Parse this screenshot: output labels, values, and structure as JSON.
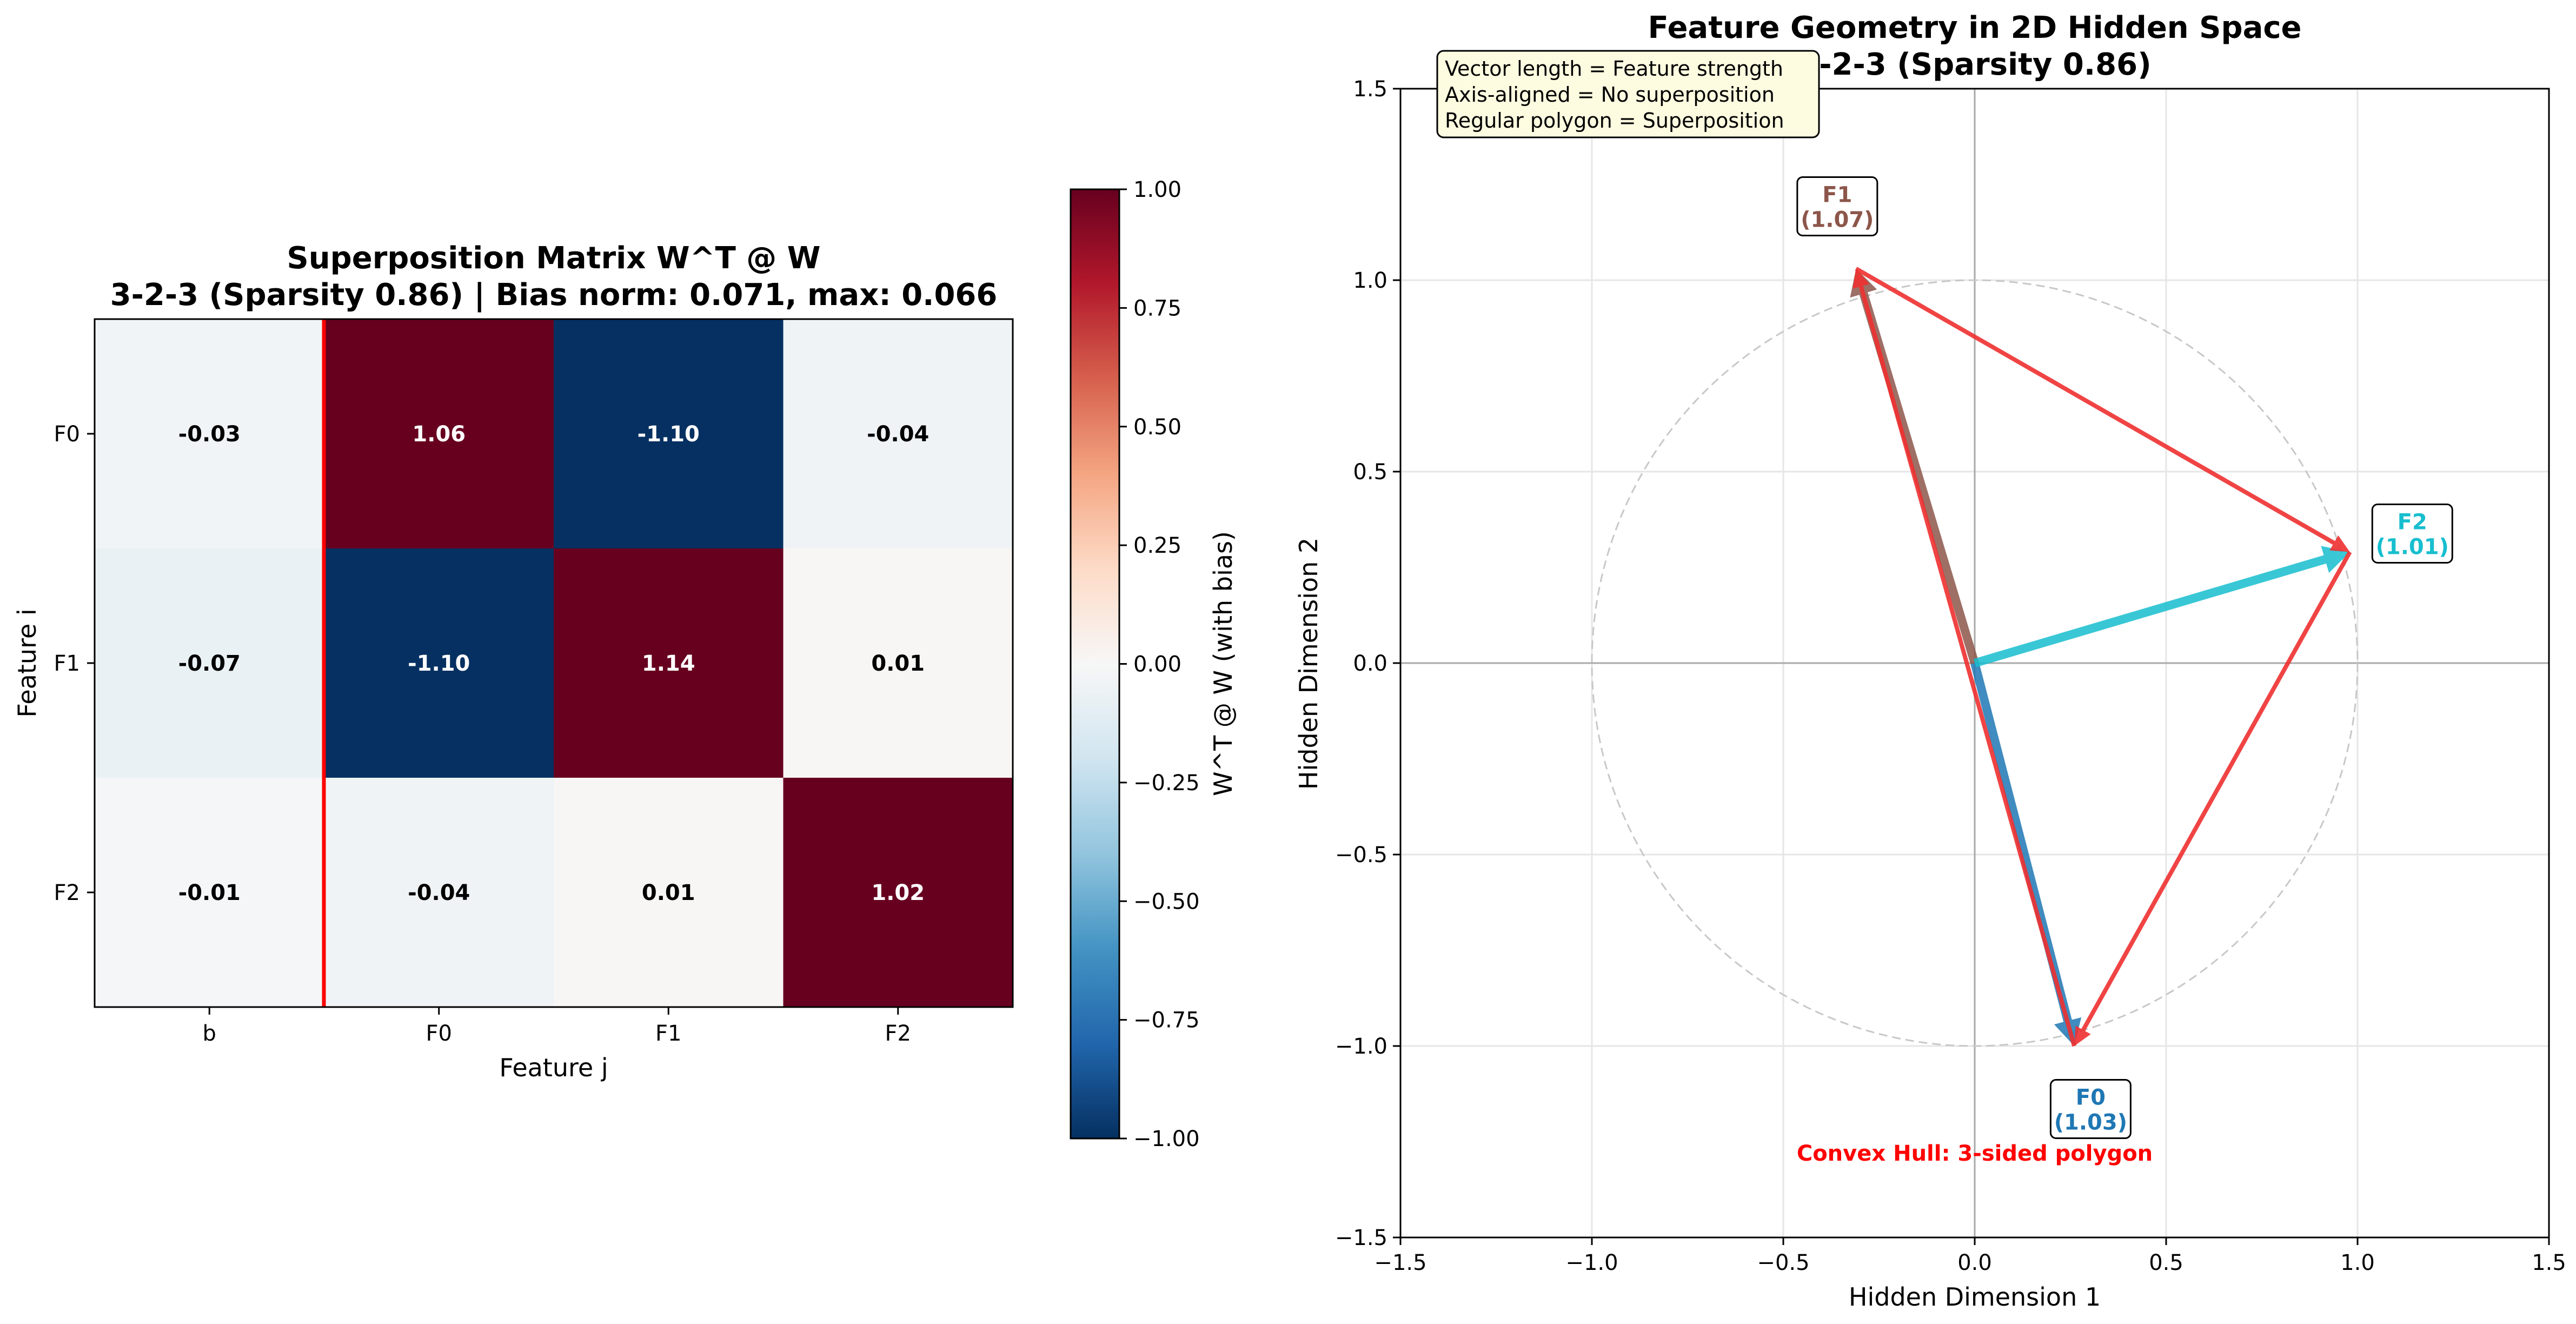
{
  "chart_data": [
    {
      "type": "heatmap",
      "title_line1": "Superposition Matrix W^T @ W",
      "title_line2": "3-2-3 (Sparsity 0.86) | Bias norm: 0.071, max: 0.066",
      "xlabel": "Feature j",
      "ylabel": "Feature i",
      "columns": [
        "b",
        "F0",
        "F1",
        "F2"
      ],
      "rows": [
        "F0",
        "F1",
        "F2"
      ],
      "values": [
        [
          -0.03,
          1.06,
          -1.1,
          -0.04
        ],
        [
          -0.07,
          -1.1,
          1.14,
          0.01
        ],
        [
          -0.01,
          -0.04,
          0.01,
          1.02
        ]
      ],
      "cell_labels": [
        [
          "-0.03",
          "1.06",
          "-1.10",
          "-0.04"
        ],
        [
          "-0.07",
          "-1.10",
          "1.14",
          "0.01"
        ],
        [
          "-0.01",
          "-0.04",
          "0.01",
          "1.02"
        ]
      ],
      "colormap": "RdBu_r",
      "vmin": -1.0,
      "vmax": 1.0,
      "separator_color": "#ff0000",
      "colorbar": {
        "label": "W^T @ W (with bias)",
        "ticks": [
          1.0,
          0.75,
          0.5,
          0.25,
          0.0,
          -0.25,
          -0.5,
          -0.75,
          -1.0
        ],
        "tick_labels": [
          "1.00",
          "0.75",
          "0.50",
          "0.25",
          "0.00",
          "−0.25",
          "−0.50",
          "−0.75",
          "−1.00"
        ]
      }
    },
    {
      "type": "vector",
      "title_line1": "Feature Geometry in 2D Hidden Space",
      "title_line2": "3-2-3 (Sparsity 0.86)",
      "xlabel": "Hidden Dimension 1",
      "ylabel": "Hidden Dimension 2",
      "xlim": [
        -1.5,
        1.5
      ],
      "ylim": [
        -1.5,
        1.5
      ],
      "ticks": [
        -1.5,
        -1.0,
        -0.5,
        0.0,
        0.5,
        1.0,
        1.5
      ],
      "tick_labels": [
        "−1.5",
        "−1.0",
        "−0.5",
        "0.0",
        "0.5",
        "1.0",
        "1.5"
      ],
      "grid": true,
      "unit_circle": true,
      "info_box": [
        "Vector length = Feature strength",
        "Axis-aligned = No superposition",
        "Regular polygon = Superposition"
      ],
      "vectors": [
        {
          "name": "F0",
          "x": 0.26,
          "y": -1.0,
          "length_label": "(1.03)",
          "color": "#1f77b4"
        },
        {
          "name": "F1",
          "x": -0.31,
          "y": 1.03,
          "length_label": "(1.07)",
          "color": "#8c564b"
        },
        {
          "name": "F2",
          "x": 0.98,
          "y": 0.29,
          "length_label": "(1.01)",
          "color": "#17becf"
        }
      ],
      "hull_color": "#ef3030",
      "hull_label": "Convex Hull: 3-sided polygon",
      "hull_label_color": "#ff0000"
    }
  ]
}
